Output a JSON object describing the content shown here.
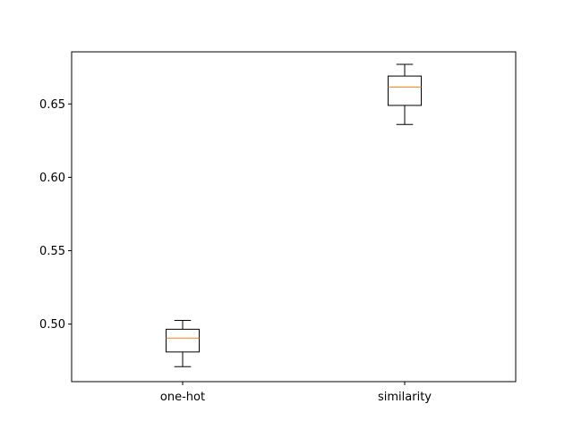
{
  "chart_data": {
    "type": "box",
    "title": "",
    "xlabel": "",
    "ylabel": "",
    "categories": [
      "one-hot",
      "similarity"
    ],
    "boxes": [
      {
        "label": "one-hot",
        "whisker_low": 0.471,
        "q1": 0.481,
        "median": 0.4905,
        "q3": 0.4965,
        "whisker_high": 0.5025
      },
      {
        "label": "similarity",
        "whisker_low": 0.636,
        "q1": 0.649,
        "median": 0.6615,
        "q3": 0.669,
        "whisker_high": 0.677
      }
    ],
    "ylim": [
      0.4608,
      0.6855
    ],
    "yticks": [
      0.5,
      0.55,
      0.6,
      0.65
    ],
    "ytick_labels": [
      "0.50",
      "0.55",
      "0.60",
      "0.65"
    ],
    "grid": false,
    "colors": {
      "box": "#000000",
      "median": "#ff7f0e",
      "axes": "#000000"
    }
  }
}
